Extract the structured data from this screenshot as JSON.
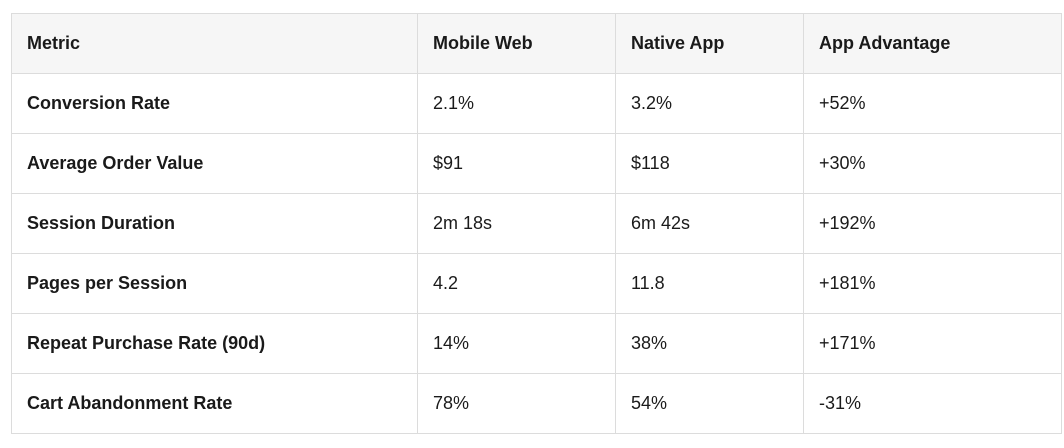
{
  "table": {
    "header": [
      "Metric",
      "Mobile Web",
      "Native App",
      "App Advantage"
    ],
    "rows": [
      [
        "Conversion Rate",
        "2.1%",
        "3.2%",
        "+52%"
      ],
      [
        "Average Order Value",
        "$91",
        "$118",
        "+30%"
      ],
      [
        "Session Duration",
        "2m 18s",
        "6m 42s",
        "+192%"
      ],
      [
        "Pages per Session",
        "4.2",
        "11.8",
        "+181%"
      ],
      [
        "Repeat Purchase Rate (90d)",
        "14%",
        "38%",
        "+171%"
      ],
      [
        "Cart Abandonment Rate",
        "78%",
        "54%",
        "-31%"
      ]
    ]
  }
}
